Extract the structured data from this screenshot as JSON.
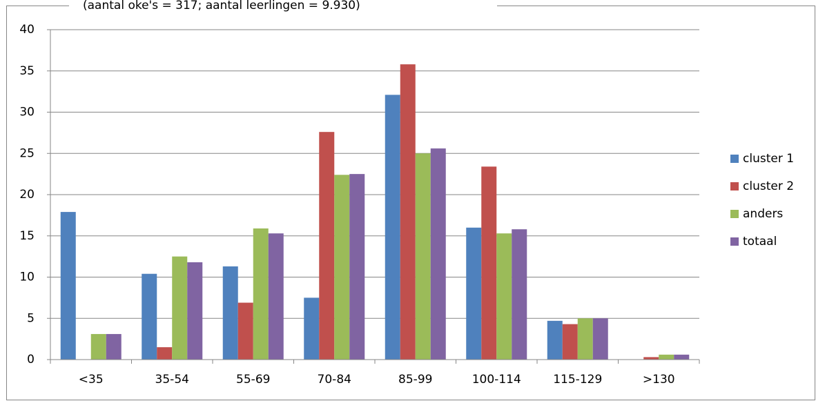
{
  "chart_data": {
    "type": "bar",
    "subtitle": "(aantal oke's = 317; aantal leerlingen = 9.930)",
    "categories": [
      "<35",
      "35-54",
      "55-69",
      "70-84",
      "85-99",
      "100-114",
      "115-129",
      ">130"
    ],
    "series": [
      {
        "name": "cluster 1",
        "color": "#4f81bd",
        "values": [
          17.9,
          10.4,
          11.3,
          7.5,
          32.1,
          16.0,
          4.7,
          0
        ]
      },
      {
        "name": "cluster 2",
        "color": "#c0504d",
        "values": [
          0,
          1.5,
          6.9,
          27.6,
          35.8,
          23.4,
          4.3,
          0.3
        ]
      },
      {
        "name": "anders",
        "color": "#9bbb59",
        "values": [
          3.1,
          12.5,
          15.9,
          22.4,
          25.0,
          15.3,
          5.0,
          0.6
        ]
      },
      {
        "name": "totaal",
        "color": "#8064a2",
        "values": [
          3.1,
          11.8,
          15.3,
          22.5,
          25.6,
          15.8,
          5.0,
          0.6
        ]
      }
    ],
    "ylim": [
      0,
      40
    ],
    "yticks": [
      0,
      5,
      10,
      15,
      20,
      25,
      30,
      35,
      40
    ],
    "grid": true,
    "legend": "right"
  }
}
